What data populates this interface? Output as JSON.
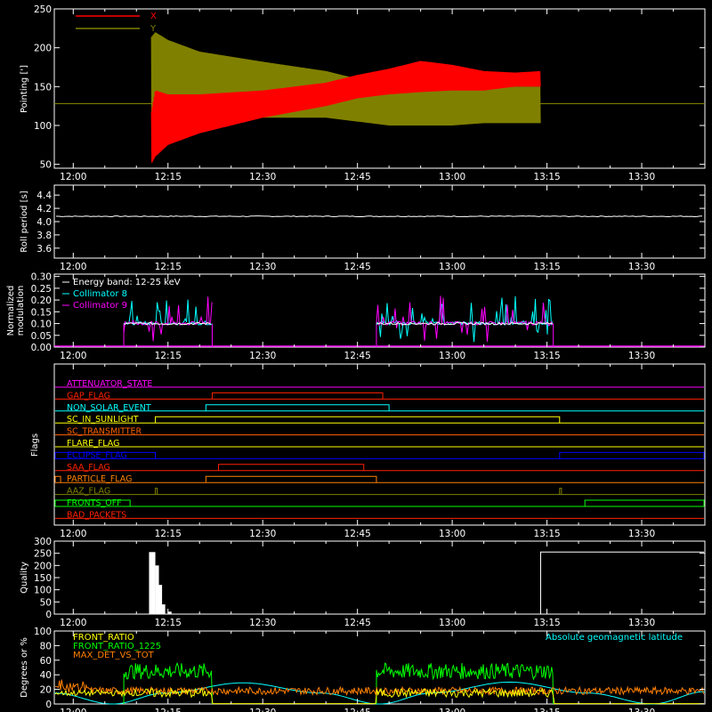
{
  "chart_data": [
    {
      "type": "line",
      "ylabel": "Pointing [']",
      "ylim": [
        45,
        250
      ],
      "yticks": [
        50,
        100,
        150,
        200,
        250
      ],
      "xlim_minutes": [
        0,
        100
      ],
      "time_ticks": [
        "12:00",
        "12:15",
        "12:30",
        "12:45",
        "13:00",
        "13:15",
        "13:30"
      ],
      "series": [
        {
          "name": "X",
          "color": "#ff0000",
          "envelope_time": [
            "12:12",
            "12:13",
            "12:15",
            "12:20",
            "12:30",
            "12:40",
            "12:45",
            "12:50",
            "12:55",
            "13:00",
            "13:05",
            "13:10",
            "13:14"
          ],
          "upper": [
            100,
            145,
            140,
            140,
            145,
            155,
            165,
            173,
            183,
            178,
            170,
            168,
            170
          ],
          "lower": [
            45,
            60,
            75,
            90,
            110,
            125,
            135,
            140,
            143,
            145,
            145,
            150,
            150
          ]
        },
        {
          "name": "Y",
          "color": "#808000",
          "envelope_time": [
            "12:12",
            "12:13",
            "12:15",
            "12:20",
            "12:30",
            "12:40",
            "12:45",
            "12:50",
            "12:55",
            "13:00",
            "13:05",
            "13:10",
            "13:14"
          ],
          "upper": [
            210,
            220,
            210,
            195,
            182,
            170,
            160,
            158,
            156,
            155,
            155,
            150,
            150
          ],
          "lower": [
            80,
            110,
            118,
            115,
            110,
            110,
            105,
            100,
            100,
            100,
            103,
            103,
            103
          ]
        }
      ],
      "baseline": 128
    },
    {
      "type": "line",
      "ylabel": "Roll period [s]",
      "ylim": [
        3.45,
        4.55
      ],
      "yticks": [
        "3.6",
        "3.8",
        "4.0",
        "4.2",
        "4.4"
      ],
      "ytick_values": [
        3.6,
        3.8,
        4.0,
        4.2,
        4.4
      ],
      "series": [
        {
          "color": "#ffffff",
          "value": 4.08
        }
      ]
    },
    {
      "type": "bar",
      "ylabel_lines": [
        "Normalized",
        "modulation"
      ],
      "ylim": [
        0,
        0.31
      ],
      "yticks": [
        "0.00",
        "0.05",
        "0.10",
        "0.15",
        "0.20",
        "0.25",
        "0.30"
      ],
      "ytick_values": [
        0,
        0.05,
        0.1,
        0.15,
        0.2,
        0.25,
        0.3
      ],
      "legend": [
        "Energy band: 12-25 keV",
        "Collimator 8",
        "Collimator 9"
      ],
      "legend_colors": [
        "#ffffff",
        "#00ffff",
        "#ff00ff"
      ],
      "active_intervals": [
        [
          "12:08",
          "12:22"
        ],
        [
          "12:48",
          "13:16"
        ]
      ],
      "base_level": 0.1
    },
    {
      "type": "line",
      "ylabel": "Flags",
      "flags": [
        {
          "name": "ATTENUATOR_STATE",
          "color": "#ff00ff",
          "on": []
        },
        {
          "name": "GAP_FLAG",
          "color": "#ff2000",
          "on": [
            [
              "12:22",
              "12:49"
            ]
          ]
        },
        {
          "name": "NON_SOLAR_EVENT",
          "color": "#00ffff",
          "on": [
            [
              "12:21",
              "12:50"
            ]
          ]
        },
        {
          "name": "SC_IN_SUNLIGHT",
          "color": "#ffff00",
          "on": [
            [
              "12:13",
              "13:17"
            ]
          ]
        },
        {
          "name": "SC_TRANSMITTER",
          "color": "#ff6000",
          "on": []
        },
        {
          "name": "FLARE_FLAG",
          "color": "#ffff00",
          "on": []
        },
        {
          "name": "ECLIPSE_FLAG",
          "color": "#0000ff",
          "on": [
            [
              "11:57",
              "12:13"
            ],
            [
              "13:17",
              "13:40"
            ]
          ]
        },
        {
          "name": "SAA_FLAG",
          "color": "#ff2000",
          "on": [
            [
              "12:23",
              "12:46"
            ]
          ]
        },
        {
          "name": "PARTICLE_FLAG",
          "color": "#ff8000",
          "on": [
            [
              "11:57",
              "11:58"
            ],
            [
              "12:21",
              "12:48"
            ]
          ]
        },
        {
          "name": "AAZ_FLAG",
          "color": "#808000",
          "on": [
            [
              "12:13",
              "12:13.3"
            ],
            [
              "13:17",
              "13:17.3"
            ]
          ]
        },
        {
          "name": "FRONTS_OFF",
          "color": "#00ff00",
          "on": [
            [
              "11:57",
              "12:09"
            ],
            [
              "13:21",
              "13:40"
            ]
          ]
        },
        {
          "name": "BAD_PACKETS",
          "color": "#ff2000",
          "on": []
        }
      ]
    },
    {
      "type": "bar",
      "ylabel": "Quality",
      "ylim": [
        0,
        300
      ],
      "yticks": [
        "0",
        "50",
        "100",
        "150",
        "200",
        "250",
        "300"
      ],
      "ytick_values": [
        0,
        50,
        100,
        150,
        200,
        250,
        300
      ],
      "segments": [
        {
          "start": "12:12",
          "end": "12:13",
          "value": 255
        },
        {
          "start": "13:14",
          "end": "13:40",
          "value": 255
        }
      ],
      "decay": [
        {
          "time": "12:13",
          "value": 200
        },
        {
          "time": "12:13.5",
          "value": 120
        },
        {
          "time": "12:14",
          "value": 40
        },
        {
          "time": "12:15",
          "value": 10
        }
      ]
    },
    {
      "type": "line",
      "ylabel": "Degrees or %",
      "ylim": [
        0,
        100
      ],
      "yticks": [
        "0",
        "20",
        "40",
        "60",
        "80",
        "100"
      ],
      "ytick_values": [
        0,
        20,
        40,
        60,
        80,
        100
      ],
      "legend": [
        "FRONT_RATIO",
        "FRONT_RATIO_1225",
        "MAX_DET_VS_TOT"
      ],
      "legend_colors": [
        "#ffff00",
        "#00ff00",
        "#ff8000"
      ],
      "right_label": "Absolute geomagnetic latitude",
      "right_label_color": "#00ffff",
      "series": [
        {
          "name": "FRONT_RATIO",
          "color": "#ffff00",
          "level": 15
        },
        {
          "name": "FRONT_RATIO_1225",
          "color": "#00ff00",
          "level": 45,
          "active_intervals": [
            [
              "12:08",
              "12:22"
            ],
            [
              "12:48",
              "13:16"
            ]
          ]
        },
        {
          "name": "MAX_DET_VS_TOT",
          "color": "#ff8000",
          "level": 18
        }
      ],
      "latitude_knots": [
        [
          0,
          15
        ],
        [
          9,
          0
        ],
        [
          17,
          15
        ],
        [
          29,
          29
        ],
        [
          41,
          15
        ],
        [
          50,
          0
        ],
        [
          58,
          15
        ],
        [
          70,
          30
        ],
        [
          82,
          15
        ],
        [
          92,
          0
        ],
        [
          100,
          17
        ]
      ]
    }
  ]
}
